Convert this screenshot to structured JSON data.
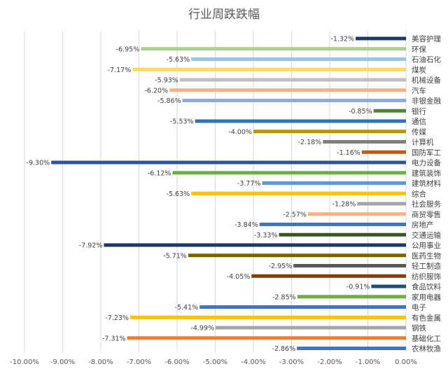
{
  "chart_data": {
    "type": "bar",
    "orientation": "horizontal",
    "title": "行业周跌跌幅",
    "xlabel": "",
    "ylabel": "",
    "xlim": [
      -10,
      0
    ],
    "xticks": [
      "-10.00%",
      "-9.00%",
      "-8.00%",
      "-7.00%",
      "-6.00%",
      "-5.00%",
      "-4.00%",
      "-3.00%",
      "-2.00%",
      "-1.00%",
      "0.00%"
    ],
    "grid": true,
    "legend": "none",
    "categories": [
      "美容护理",
      "环保",
      "石油石化",
      "煤炭",
      "机械设备",
      "汽车",
      "非银金融",
      "银行",
      "通信",
      "传媒",
      "计算机",
      "国防军工",
      "电力设备",
      "建筑装饰",
      "建筑材料",
      "综合",
      "社会服务",
      "商贸零售",
      "房地产",
      "交通运输",
      "公用事业",
      "医药生物",
      "轻工制造",
      "纺织服饰",
      "食品饮料",
      "家用电器",
      "电子",
      "有色金属",
      "钢铁",
      "基础化工",
      "农林牧渔"
    ],
    "values": [
      -1.32,
      -6.95,
      -5.63,
      -7.17,
      -5.93,
      -6.2,
      -5.86,
      -0.85,
      -5.53,
      -4.0,
      -2.18,
      -1.16,
      -9.3,
      -6.12,
      -3.77,
      -5.63,
      -1.28,
      -2.57,
      -3.84,
      -3.33,
      -7.92,
      -5.71,
      -2.95,
      -4.05,
      -0.91,
      -2.85,
      -5.41,
      -7.23,
      -4.99,
      -7.31,
      -2.86
    ],
    "value_labels": [
      "-1.32%",
      "-6.95%",
      "-5.63%",
      "-7.17%",
      "-5.93%",
      "-6.20%",
      "-5.86%",
      "-0.85%",
      "-5.53%",
      "-4.00%",
      "-2.18%",
      "-1.16%",
      "-9.30%",
      "-6.12%",
      "-3.77%",
      "-5.63%",
      "-1.28%",
      "-2.57%",
      "-3.84%",
      "-3.33%",
      "-7.92%",
      "-5.71%",
      "-2.95%",
      "-4.05%",
      "-0.91%",
      "-2.85%",
      "-5.41%",
      "-7.23%",
      "-4.99%",
      "-7.31%",
      "-2.86%"
    ],
    "colors": [
      "#1f3864",
      "#a9d18e",
      "#9dc3e6",
      "#ffd966",
      "#bfbfbf",
      "#f4b183",
      "#8faadc",
      "#548235",
      "#2e75b6",
      "#bf9000",
      "#7f7f7f",
      "#c55a11",
      "#2f5597",
      "#70ad47",
      "#5b9bd5",
      "#ffc000",
      "#a5a5a5",
      "#f4b183",
      "#4472c4",
      "#375623",
      "#203864",
      "#7f6000",
      "#595959",
      "#843c0c",
      "#1f4e79",
      "#70ad47",
      "#4472c4",
      "#ffc000",
      "#a5a5a5",
      "#ed7d31",
      "#4472c4"
    ]
  }
}
